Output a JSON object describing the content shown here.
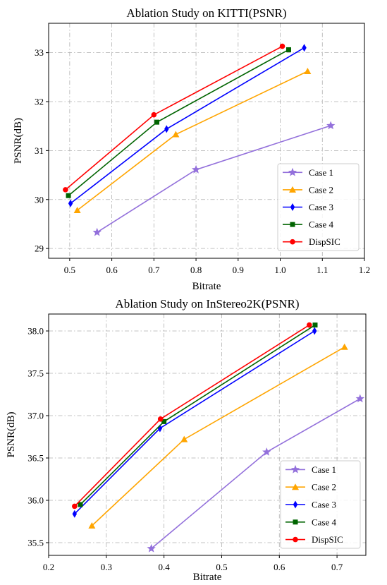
{
  "series_styles": [
    {
      "name": "Case 1",
      "color": "#9370DB",
      "marker": "star"
    },
    {
      "name": "Case 2",
      "color": "#FFA500",
      "marker": "triangle"
    },
    {
      "name": "Case 3",
      "color": "#0000FF",
      "marker": "diamond"
    },
    {
      "name": "Case 4",
      "color": "#006400",
      "marker": "square"
    },
    {
      "name": "DispSIC",
      "color": "#FF0000",
      "marker": "circle"
    }
  ],
  "chart_data": [
    {
      "type": "line",
      "title": "Ablation Study on KITTI(PSNR)",
      "xlabel": "Bitrate",
      "ylabel": "PSNR(dB)",
      "xlim": [
        0.45,
        1.2
      ],
      "ylim": [
        28.8,
        33.6
      ],
      "xticks": [
        0.5,
        0.6,
        0.7,
        0.8,
        0.9,
        1.0,
        1.1,
        1.2
      ],
      "yticks": [
        29,
        30,
        31,
        32,
        33
      ],
      "grid": true,
      "legend": "lower-right",
      "series": [
        {
          "name": "Case 1",
          "x": [
            0.565,
            0.8,
            1.12
          ],
          "y": [
            29.33,
            30.61,
            31.51
          ]
        },
        {
          "name": "Case 2",
          "x": [
            0.518,
            0.752,
            1.065
          ],
          "y": [
            29.78,
            31.33,
            32.62
          ]
        },
        {
          "name": "Case 3",
          "x": [
            0.502,
            0.73,
            1.057
          ],
          "y": [
            29.92,
            31.44,
            33.1
          ]
        },
        {
          "name": "Case 4",
          "x": [
            0.497,
            0.707,
            1.02
          ],
          "y": [
            30.08,
            31.58,
            33.06
          ]
        },
        {
          "name": "DispSIC",
          "x": [
            0.49,
            0.7,
            1.005
          ],
          "y": [
            30.2,
            31.73,
            33.13
          ]
        }
      ]
    },
    {
      "type": "line",
      "title": "Ablation Study on InStereo2K(PSNR)",
      "xlabel": "Bitrate",
      "ylabel": "PSNR(dB)",
      "xlim": [
        0.2,
        0.75
      ],
      "ylim": [
        35.35,
        38.2
      ],
      "xticks": [
        0.2,
        0.3,
        0.4,
        0.5,
        0.6,
        0.7
      ],
      "yticks": [
        35.5,
        36.0,
        36.5,
        37.0,
        37.5,
        38.0
      ],
      "grid": true,
      "legend": "lower-right",
      "series": [
        {
          "name": "Case 1",
          "x": [
            0.378,
            0.578,
            0.74
          ],
          "y": [
            35.43,
            36.57,
            37.2
          ]
        },
        {
          "name": "Case 2",
          "x": [
            0.275,
            0.435,
            0.713
          ],
          "y": [
            35.7,
            36.72,
            37.81
          ]
        },
        {
          "name": "Case 3",
          "x": [
            0.245,
            0.393,
            0.661
          ],
          "y": [
            35.84,
            36.85,
            38.0
          ]
        },
        {
          "name": "Case 4",
          "x": [
            0.255,
            0.4,
            0.662
          ],
          "y": [
            35.95,
            36.93,
            38.07
          ]
        },
        {
          "name": "DispSIC",
          "x": [
            0.245,
            0.394,
            0.652
          ],
          "y": [
            35.93,
            36.96,
            38.07
          ]
        }
      ]
    }
  ]
}
